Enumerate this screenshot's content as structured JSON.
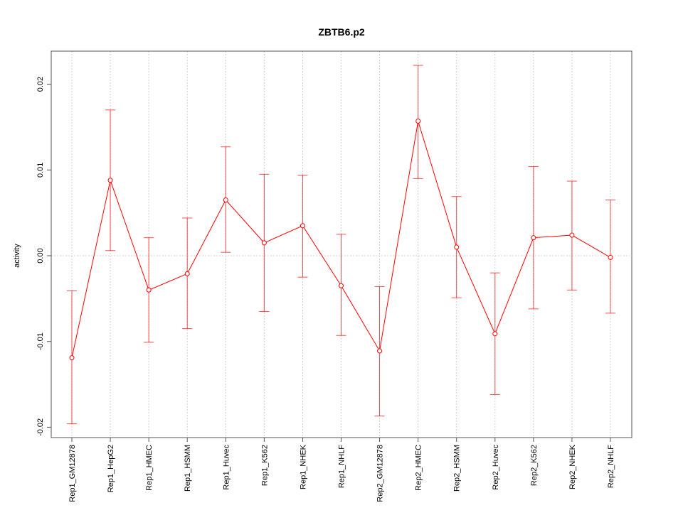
{
  "chart_data": {
    "type": "line",
    "title": "ZBTB6.p2",
    "xlabel": "",
    "ylabel": "activity",
    "ylim": [
      -0.021,
      0.024
    ],
    "yticks": [
      -0.02,
      -0.01,
      0.0,
      0.01,
      0.02
    ],
    "ytick_labels": [
      "-0.02",
      "-0.01",
      "0.00",
      "0.01",
      "0.02"
    ],
    "grid": true,
    "color": "#ff0000",
    "categories": [
      "Rep1_GM12878",
      "Rep1_HepG2",
      "Rep1_HMEC",
      "Rep1_HSMM",
      "Rep1_Huvec",
      "Rep1_K562",
      "Rep1_NHEK",
      "Rep1_NHLF",
      "Rep2_GM12878",
      "Rep2_HMEC",
      "Rep2_HSMM",
      "Rep2_Huvec",
      "Rep2_K562",
      "Rep2_NHEK",
      "Rep2_NHLF"
    ],
    "values": [
      -0.0119,
      0.0088,
      -0.004,
      -0.0021,
      0.0065,
      0.0015,
      0.0035,
      -0.0035,
      -0.0111,
      0.0157,
      0.001,
      -0.0091,
      0.0021,
      0.0024,
      -0.0002
    ],
    "upper": [
      -0.0041,
      0.017,
      0.0021,
      0.0044,
      0.0127,
      0.0095,
      0.0094,
      0.0025,
      -0.0036,
      0.0222,
      0.0069,
      -0.002,
      0.0104,
      0.0087,
      0.0065
    ],
    "lower": [
      -0.0196,
      0.0006,
      -0.0101,
      -0.0085,
      0.0004,
      -0.0065,
      -0.0025,
      -0.0093,
      -0.0187,
      0.009,
      -0.0049,
      -0.0162,
      -0.0062,
      -0.004,
      -0.0067
    ]
  }
}
